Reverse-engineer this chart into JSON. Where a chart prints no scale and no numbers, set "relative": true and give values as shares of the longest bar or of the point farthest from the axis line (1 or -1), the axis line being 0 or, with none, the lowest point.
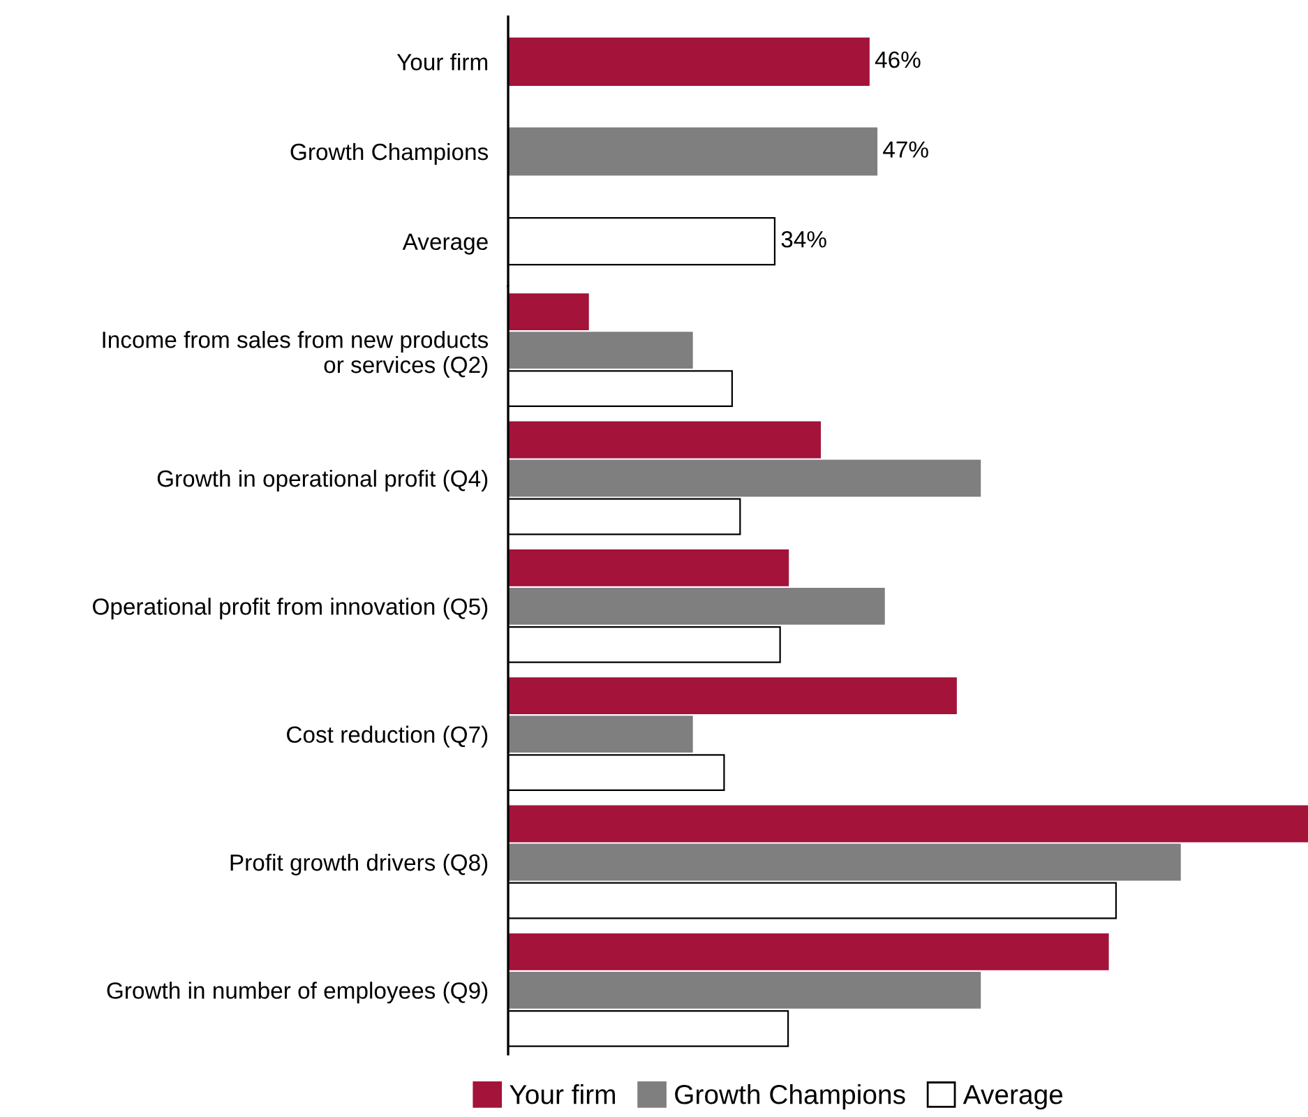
{
  "chart_data": [
    {
      "type": "bar",
      "orientation": "horizontal",
      "categories": [
        "Your firm",
        "Growth Champions",
        "Average"
      ],
      "values": [
        46,
        47,
        34
      ],
      "colors": [
        "#a3133a",
        "#7f7f7f",
        "#ffffff"
      ],
      "value_labels": [
        "46%",
        "47%",
        "34%"
      ]
    },
    {
      "type": "bar",
      "orientation": "horizontal",
      "relative": true,
      "legend": "bottom",
      "categories": [
        "Income from sales from new products\nor services (Q2)",
        "Growth in operational profit (Q4)",
        "Operational profit from innovation (Q5)",
        "Cost reduction (Q7)",
        "Profit growth drivers (Q8)",
        "Growth in number of employees (Q9)"
      ],
      "series": [
        {
          "name": "Your firm",
          "color": "#a3133a",
          "values": [
            0.1,
            0.39,
            0.35,
            0.56,
            1,
            0.75
          ]
        },
        {
          "name": "Growth Champions",
          "color": "#7f7f7f",
          "values": [
            0.23,
            0.59,
            0.47,
            0.23,
            0.84,
            0.59
          ]
        },
        {
          "name": "Average",
          "color": "#ffffff",
          "values": [
            0.28,
            0.29,
            0.34,
            0.27,
            0.76,
            0.35
          ]
        }
      ]
    }
  ]
}
